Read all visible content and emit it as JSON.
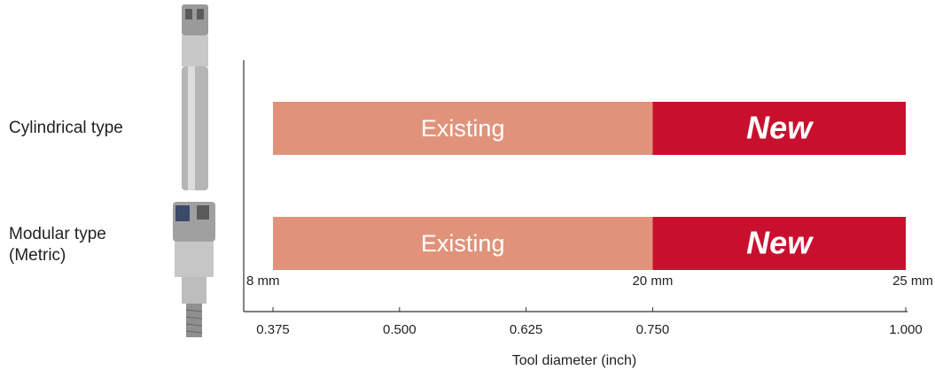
{
  "chart_data": {
    "type": "range-bar",
    "categories": [
      "Cylindrical type",
      "Modular type (Metric)"
    ],
    "series": [
      {
        "name": "Existing",
        "color": "#e0937a",
        "start": [
          0.375,
          0.375
        ],
        "values": [
          0.75,
          0.75
        ]
      },
      {
        "name": "New",
        "color": "#c8102e",
        "start": [
          0.75,
          0.75
        ],
        "values": [
          1.0,
          1.0
        ]
      }
    ],
    "xlim": [
      0.375,
      1.0
    ],
    "xticks": [
      0.375,
      {
        "value": 0.5,
        "label": "0.500"
      },
      0.625,
      {
        "value": 0.75,
        "label": "0.750"
      },
      {
        "value": 1.0,
        "label": "1.000"
      }
    ],
    "secondary_ticks": [
      {
        "value": 0.375,
        "label": "8 mm"
      },
      {
        "value": 0.75,
        "label": "20 mm"
      },
      {
        "value": 1.0,
        "label": "25 mm"
      }
    ],
    "xlabel": "Tool diameter (inch)"
  }
}
